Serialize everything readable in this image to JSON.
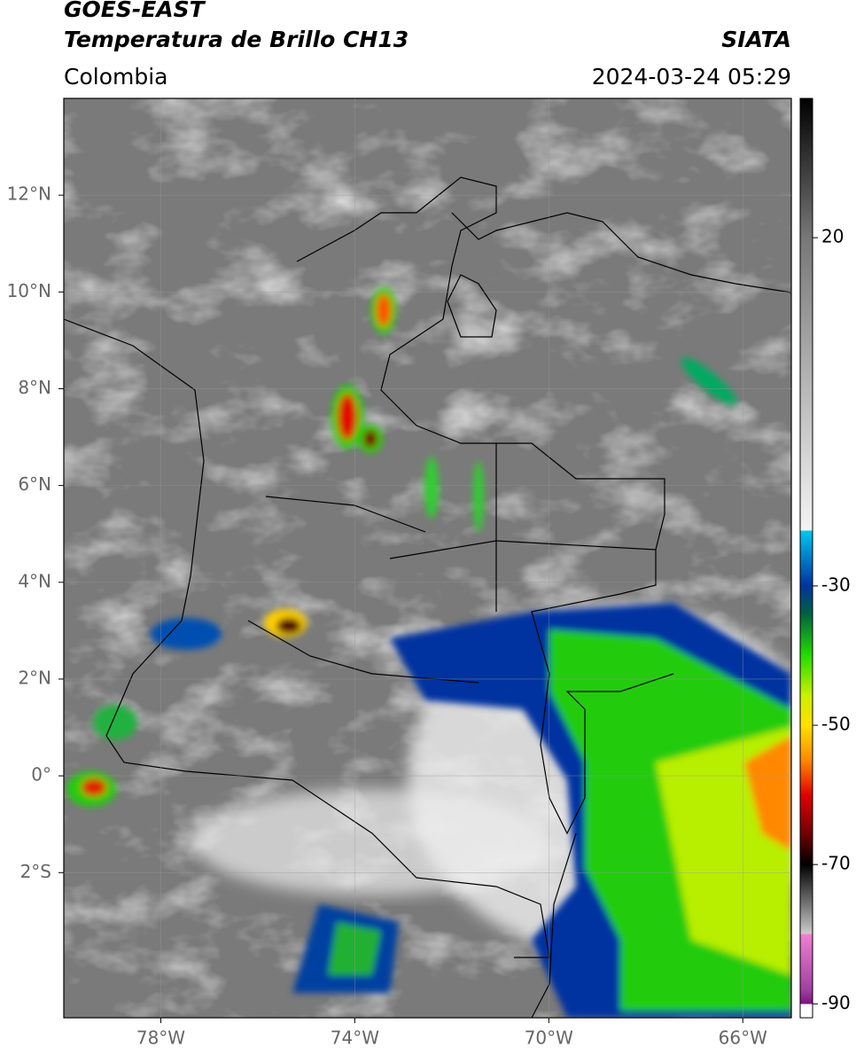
{
  "header": {
    "title": "GOES-EAST",
    "subtitle": "Temperatura de Brillo CH13",
    "source": "SIATA",
    "region": "Colombia",
    "datetime": "2024-03-24 05:29"
  },
  "map": {
    "xlim": [
      -80,
      -65
    ],
    "ylim": [
      -5,
      14
    ],
    "xticks": [
      {
        "value": -78,
        "label": "78°W"
      },
      {
        "value": -74,
        "label": "74°W"
      },
      {
        "value": -70,
        "label": "70°W"
      },
      {
        "value": -66,
        "label": "66°W"
      }
    ],
    "yticks": [
      {
        "value": 12,
        "label": "12°N"
      },
      {
        "value": 10,
        "label": "10°N"
      },
      {
        "value": 8,
        "label": "8°N"
      },
      {
        "value": 6,
        "label": "6°N"
      },
      {
        "value": 4,
        "label": "4°N"
      },
      {
        "value": 2,
        "label": "2°N"
      },
      {
        "value": 0,
        "label": "0°"
      },
      {
        "value": -2,
        "label": "2°S"
      }
    ],
    "grid": true
  },
  "colorbar": {
    "lim": [
      -92,
      40
    ],
    "ticks": [
      20,
      -30,
      -50,
      -70,
      -90
    ]
  }
}
